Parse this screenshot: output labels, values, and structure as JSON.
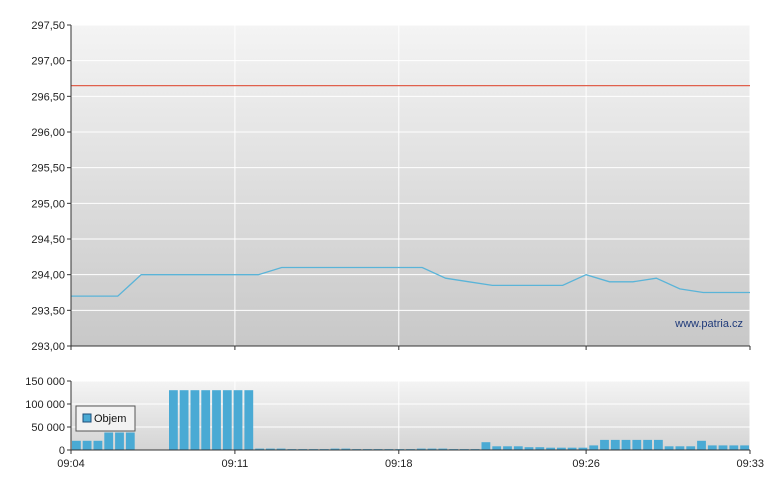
{
  "watermark": "www.patria.cz",
  "legend": {
    "label": "Objem"
  },
  "colors": {
    "line": "#5ab4d8",
    "reference": "#e0604c",
    "bars": "#4aaad4",
    "plot_top": "#f4f4f4",
    "plot_bottom": "#c8c8c8",
    "grid": "#ffffff"
  },
  "chart_data": [
    {
      "type": "line",
      "title": "",
      "xlabel": "",
      "ylabel": "",
      "ylim": [
        293.0,
        297.5
      ],
      "y_ticks": [
        "297,50",
        "297,00",
        "296,50",
        "296,00",
        "295,50",
        "295,00",
        "294,50",
        "294,00",
        "293,50",
        "293,00"
      ],
      "x_range_minutes": [
        "09:04",
        "09:33"
      ],
      "x_gridlines": [
        "09:11",
        "09:18",
        "09:26",
        "09:33"
      ],
      "reference_line": 296.65,
      "grid": true,
      "series": [
        {
          "x": [
            "09:04",
            "09:05",
            "09:06",
            "09:07",
            "09:08",
            "09:09",
            "09:10",
            "09:11",
            "09:12",
            "09:13",
            "09:14",
            "09:15",
            "09:16",
            "09:17",
            "09:18",
            "09:19",
            "09:20",
            "09:21",
            "09:22",
            "09:23",
            "09:24",
            "09:25",
            "09:26",
            "09:27",
            "09:28",
            "09:29",
            "09:30",
            "09:31",
            "09:32",
            "09:33"
          ],
          "values": [
            293.7,
            293.7,
            293.7,
            294.0,
            294.0,
            294.0,
            294.0,
            294.0,
            294.0,
            294.1,
            294.1,
            294.1,
            294.1,
            294.1,
            294.1,
            294.1,
            293.95,
            293.9,
            293.85,
            293.85,
            293.85,
            293.85,
            294.0,
            293.9,
            293.9,
            293.95,
            293.8,
            293.75,
            293.75,
            293.75
          ]
        }
      ]
    },
    {
      "type": "bar",
      "title": "",
      "xlabel": "",
      "ylabel": "",
      "ylim": [
        0,
        150000
      ],
      "y_ticks": [
        "150 000",
        "100 000",
        "50 000",
        "0"
      ],
      "x_ticks": [
        "09:04",
        "09:11",
        "09:18",
        "09:26",
        "09:33"
      ],
      "legend": "Objem",
      "series": [
        {
          "name": "Objem",
          "values": [
            20000,
            20000,
            20000,
            38000,
            38000,
            38000,
            0,
            0,
            0,
            130000,
            130000,
            130000,
            130000,
            130000,
            130000,
            130000,
            130000,
            3000,
            3000,
            3000,
            2000,
            2000,
            2000,
            2000,
            3000,
            3000,
            2000,
            2000,
            2000,
            2000,
            2000,
            2000,
            3000,
            3000,
            3000,
            2000,
            2000,
            2000,
            17000,
            8000,
            8000,
            8000,
            6000,
            6000,
            5000,
            5000,
            5000,
            5000,
            10000,
            22000,
            22000,
            22000,
            22000,
            22000,
            22000,
            8000,
            8000,
            8000,
            20000,
            10000,
            10000,
            10000,
            10000
          ]
        }
      ]
    }
  ]
}
